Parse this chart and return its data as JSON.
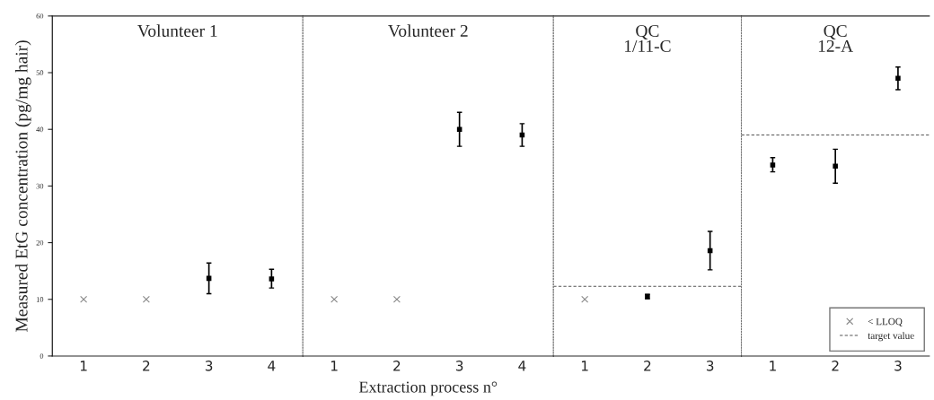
{
  "chart_data": [
    {
      "type": "scatter",
      "title": "Volunteer 1",
      "ylabel": "Measured EtG concentration (pg/mg hair)",
      "categories": [
        "1",
        "2",
        "3",
        "4"
      ],
      "ylim": [
        0,
        60
      ],
      "yticks": [
        0,
        10,
        20,
        30,
        40,
        50,
        60
      ],
      "grid": false,
      "series": [
        {
          "color": "#000000",
          "marker": "square",
          "values": [
            null,
            null,
            13.7,
            13.6
          ],
          "errors": [
            null,
            null,
            [
              11,
              16.4
            ],
            [
              12,
              15.3
            ]
          ]
        },
        {
          "color": "#888888",
          "marker": "cross",
          "values": [
            10,
            10,
            null,
            null
          ]
        }
      ]
    },
    {
      "type": "scatter",
      "title": "Volunteer 2",
      "xlabel": "Extraction process n°",
      "categories": [
        "1",
        "2",
        "3",
        "4"
      ],
      "ylim": [
        0,
        60
      ],
      "yticks": [
        0,
        10,
        20,
        30,
        40,
        50,
        60
      ],
      "tick_labels": "x",
      "grid": false,
      "series": [
        {
          "color": "#000000",
          "marker": "square",
          "values": [
            null,
            null,
            40,
            39
          ],
          "errors": [
            null,
            null,
            [
              37,
              43
            ],
            [
              37,
              41
            ]
          ]
        },
        {
          "color": "#888888",
          "marker": "cross",
          "values": [
            10,
            10,
            null,
            null
          ]
        }
      ]
    },
    {
      "type": "scatter",
      "title": "QC\n1/11-C",
      "categories": [
        "1",
        "2",
        "3"
      ],
      "ylim": [
        0,
        60
      ],
      "yticks": [
        0,
        10,
        20,
        30,
        40,
        50,
        60
      ],
      "tick_labels": "x",
      "grid": false,
      "ref_lines": [
        {
          "axis": "y",
          "value": 12.3,
          "color": "#555555",
          "line_style": "dashed"
        }
      ],
      "series": [
        {
          "color": "#000000",
          "marker": "square",
          "values": [
            null,
            10.5,
            18.6
          ],
          "errors": [
            null,
            [
              10.1,
              10.9
            ],
            [
              15.2,
              22
            ]
          ]
        },
        {
          "color": "#888888",
          "marker": "cross",
          "values": [
            10,
            null,
            null
          ]
        }
      ]
    },
    {
      "type": "scatter",
      "title": "QC\n12-A",
      "categories": [
        "1",
        "2",
        "3"
      ],
      "ylim": [
        0,
        60
      ],
      "yticks": [
        0,
        10,
        20,
        30,
        40,
        50,
        60
      ],
      "tick_labels": "x",
      "grid": false,
      "legend": "bottom right",
      "ref_lines": [
        {
          "axis": "y",
          "value": 39,
          "label": "target value",
          "color": "#555555",
          "line_style": "dashed"
        }
      ],
      "series": [
        {
          "color": "#000000",
          "marker": "square",
          "values": [
            33.7,
            33.5,
            49
          ],
          "errors": [
            [
              32.5,
              35
            ],
            [
              30.5,
              36.5
            ],
            [
              47,
              51
            ]
          ]
        },
        {
          "name": "< LLOQ",
          "color": "#888888",
          "marker": "cross",
          "values": [
            null,
            null,
            null
          ]
        }
      ]
    }
  ]
}
